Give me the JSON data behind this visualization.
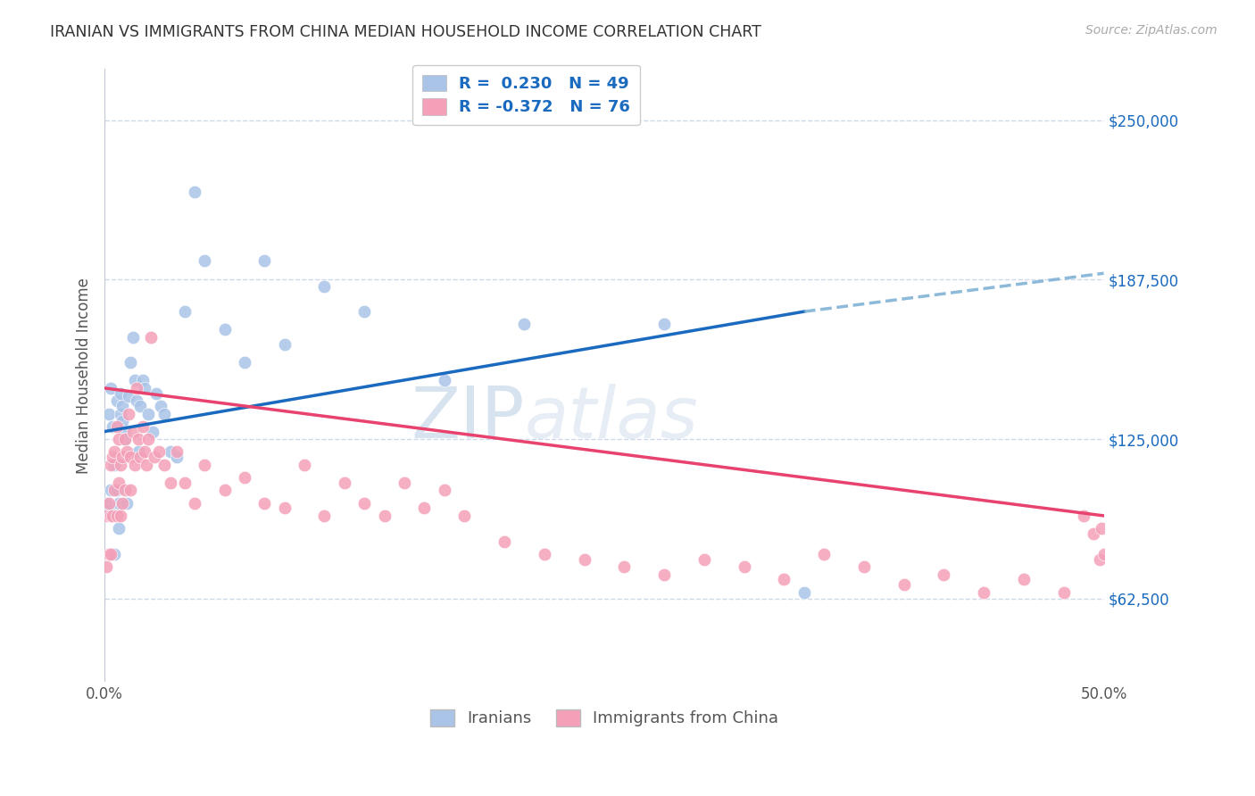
{
  "title": "IRANIAN VS IMMIGRANTS FROM CHINA MEDIAN HOUSEHOLD INCOME CORRELATION CHART",
  "source": "Source: ZipAtlas.com",
  "ylabel": "Median Household Income",
  "xmin": 0.0,
  "xmax": 0.5,
  "ymin": 30000,
  "ymax": 270000,
  "color_iranians": "#aac4e8",
  "color_china": "#f4a0b8",
  "line_color_iranians": "#1a6abf",
  "line_color_china": "#e8436e",
  "line_color_iranians_dash": "#7aaed4",
  "watermark_text": "ZIPatlas",
  "watermark_color": "#c8d8f0",
  "background_color": "#ffffff",
  "grid_color": "#c8d4e8",
  "ytick_vals": [
    62500,
    125000,
    187500,
    250000
  ],
  "ytick_labels": [
    "$62,500",
    "$125,000",
    "$187,500",
    "$250,000"
  ],
  "iranians_x": [
    0.001,
    0.002,
    0.002,
    0.003,
    0.003,
    0.004,
    0.004,
    0.005,
    0.005,
    0.006,
    0.006,
    0.007,
    0.007,
    0.008,
    0.008,
    0.009,
    0.009,
    0.01,
    0.01,
    0.011,
    0.012,
    0.013,
    0.014,
    0.015,
    0.016,
    0.017,
    0.018,
    0.019,
    0.02,
    0.022,
    0.024,
    0.026,
    0.028,
    0.03,
    0.033,
    0.036,
    0.04,
    0.045,
    0.05,
    0.06,
    0.07,
    0.08,
    0.09,
    0.11,
    0.13,
    0.17,
    0.21,
    0.28,
    0.35
  ],
  "iranians_y": [
    100000,
    135000,
    97000,
    145000,
    105000,
    130000,
    95000,
    80000,
    115000,
    105000,
    140000,
    100000,
    90000,
    143000,
    135000,
    138000,
    132000,
    128000,
    125000,
    100000,
    142000,
    155000,
    165000,
    148000,
    140000,
    120000,
    138000,
    148000,
    145000,
    135000,
    128000,
    143000,
    138000,
    135000,
    120000,
    118000,
    175000,
    222000,
    195000,
    168000,
    155000,
    195000,
    162000,
    185000,
    175000,
    148000,
    170000,
    170000,
    65000
  ],
  "china_x": [
    0.001,
    0.001,
    0.002,
    0.002,
    0.003,
    0.003,
    0.003,
    0.004,
    0.004,
    0.005,
    0.005,
    0.006,
    0.006,
    0.007,
    0.007,
    0.008,
    0.008,
    0.009,
    0.009,
    0.01,
    0.01,
    0.011,
    0.012,
    0.013,
    0.013,
    0.014,
    0.015,
    0.016,
    0.017,
    0.018,
    0.019,
    0.02,
    0.021,
    0.022,
    0.023,
    0.025,
    0.027,
    0.03,
    0.033,
    0.036,
    0.04,
    0.045,
    0.05,
    0.06,
    0.07,
    0.08,
    0.09,
    0.1,
    0.11,
    0.12,
    0.13,
    0.14,
    0.15,
    0.16,
    0.17,
    0.18,
    0.2,
    0.22,
    0.24,
    0.26,
    0.28,
    0.3,
    0.32,
    0.34,
    0.36,
    0.38,
    0.4,
    0.42,
    0.44,
    0.46,
    0.48,
    0.49,
    0.495,
    0.498,
    0.499,
    0.5
  ],
  "china_y": [
    95000,
    75000,
    100000,
    80000,
    115000,
    95000,
    80000,
    118000,
    95000,
    120000,
    105000,
    130000,
    95000,
    125000,
    108000,
    115000,
    95000,
    118000,
    100000,
    125000,
    105000,
    120000,
    135000,
    118000,
    105000,
    128000,
    115000,
    145000,
    125000,
    118000,
    130000,
    120000,
    115000,
    125000,
    165000,
    118000,
    120000,
    115000,
    108000,
    120000,
    108000,
    100000,
    115000,
    105000,
    110000,
    100000,
    98000,
    115000,
    95000,
    108000,
    100000,
    95000,
    108000,
    98000,
    105000,
    95000,
    85000,
    80000,
    78000,
    75000,
    72000,
    78000,
    75000,
    70000,
    80000,
    75000,
    68000,
    72000,
    65000,
    70000,
    65000,
    95000,
    88000,
    78000,
    90000,
    80000
  ]
}
